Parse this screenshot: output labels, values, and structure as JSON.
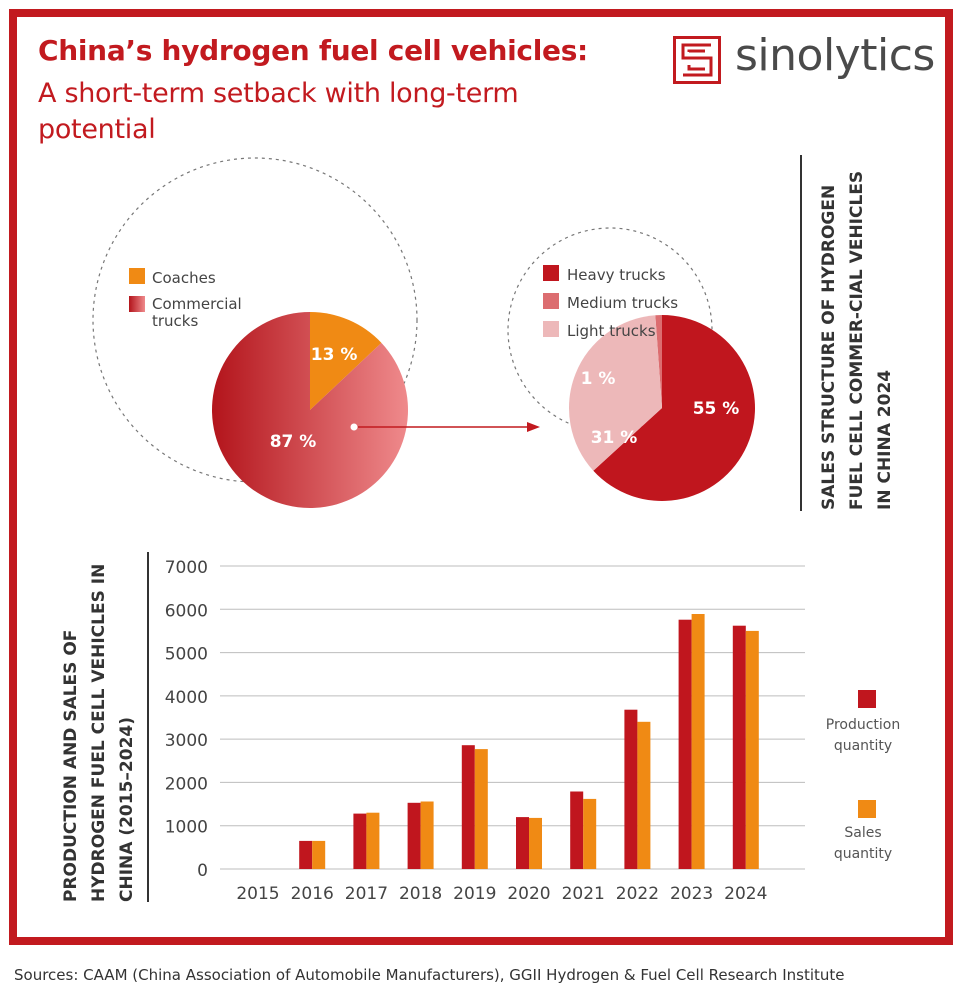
{
  "header": {
    "title_bold": "China’s hydrogen fuel cell vehicles:",
    "title_sub": "A short-term setback with long-term potential",
    "logo_text": "sinolytics"
  },
  "colors": {
    "brand_red": "#c21a1f",
    "production": "#c0161e",
    "sales": "#f08a14",
    "coaches": "#f08a14",
    "heavy": "#c0161e",
    "medium": "#dc6d70",
    "light": "#edb8b9"
  },
  "pie_section": {
    "side_title": "SALES STRUCTURE OF HYDROGEN FUEL CELL COMMER-CIAL VEHICLES IN CHINA 2024"
  },
  "bar_section": {
    "side_title": "PRODUCTION AND SALES OF HYDROGEN FUEL CELL VEHICLES IN CHINA (2015–2024)"
  },
  "chart_data": [
    {
      "type": "pie",
      "labels": [
        "Coaches",
        "Commercial trucks"
      ],
      "legend_labels": [
        "Coaches",
        "Commercial\ntrucks"
      ],
      "values": [
        13,
        87
      ],
      "value_labels": [
        "13 %",
        "87 %"
      ]
    },
    {
      "type": "pie",
      "labels": [
        "Heavy trucks",
        "Medium trucks",
        "Light trucks"
      ],
      "values": [
        55,
        1,
        31
      ],
      "value_labels": [
        "55 %",
        "1 %",
        "31 %"
      ]
    },
    {
      "type": "bar",
      "categories": [
        "2015",
        "2016",
        "2017",
        "2018",
        "2019",
        "2020",
        "2021",
        "2022",
        "2023",
        "2024"
      ],
      "series": [
        {
          "name": "Production quantity",
          "values": [
            0,
            650,
            1280,
            1530,
            2860,
            1200,
            1790,
            3680,
            5760,
            5620
          ]
        },
        {
          "name": "Sales quantity",
          "values": [
            0,
            650,
            1300,
            1560,
            2770,
            1180,
            1620,
            3400,
            5890,
            5500
          ]
        }
      ],
      "legend_labels": [
        "Production\nquantity",
        "Sales\nquantity"
      ],
      "ylim": [
        0,
        7000
      ],
      "yticks": [
        0,
        1000,
        2000,
        3000,
        4000,
        5000,
        6000,
        7000
      ],
      "grid": true
    }
  ],
  "footer": {
    "source": "Sources: CAAM (China Association of Automobile Manufacturers), GGII Hydrogen & Fuel Cell Research Institute"
  }
}
